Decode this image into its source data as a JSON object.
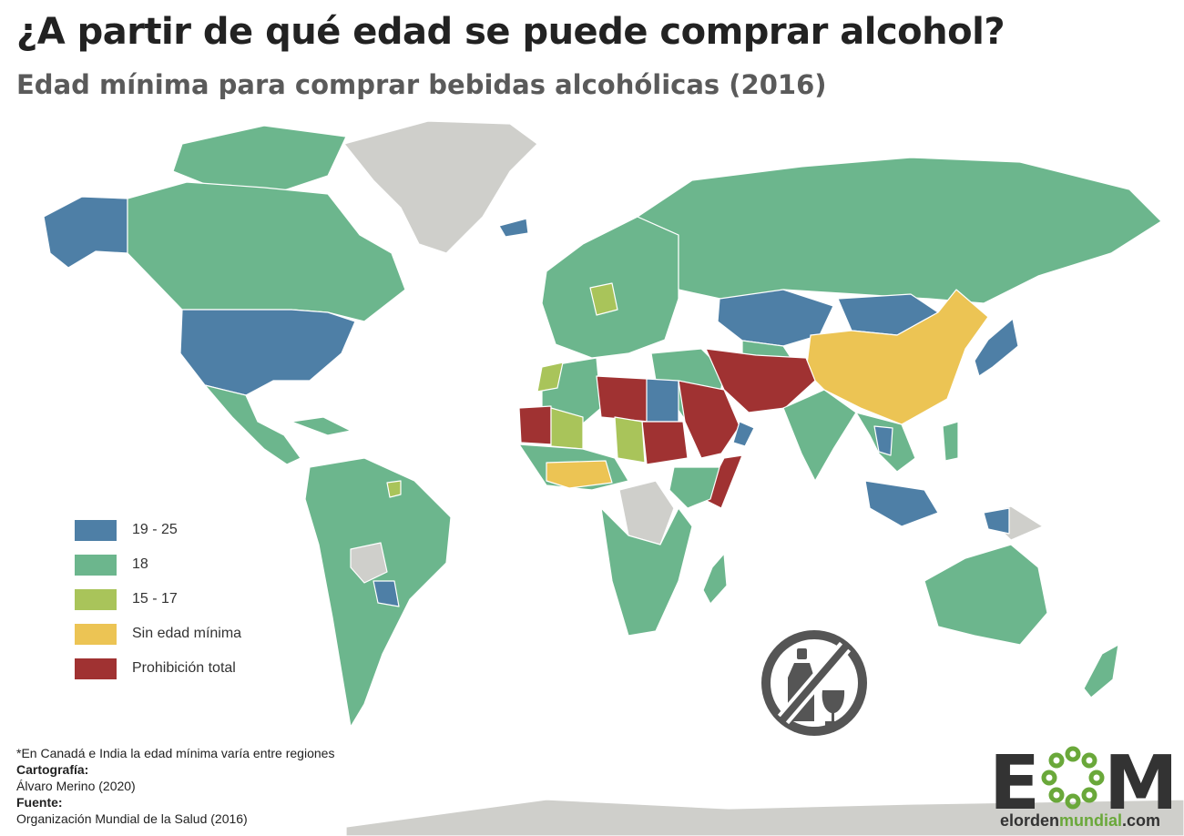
{
  "header": {
    "title": "¿A partir de qué edad se puede comprar alcohol?",
    "subtitle": "Edad mínima para comprar bebidas alcohólicas (2016)"
  },
  "colors": {
    "age_19_25": "#4e7fa6",
    "age_18": "#6cb68d",
    "age_15_17": "#a9c45a",
    "no_minimum": "#ecc454",
    "total_ban": "#a03232",
    "no_data": "#cfcfcb"
  },
  "legend": {
    "items": [
      {
        "label": "19 - 25",
        "color": "#4e7fa6"
      },
      {
        "label": "18",
        "color": "#6cb68d"
      },
      {
        "label": "15 - 17",
        "color": "#a9c45a"
      },
      {
        "label": "Sin edad mínima",
        "color": "#ecc454"
      },
      {
        "label": "Prohibición total",
        "color": "#a03232"
      }
    ]
  },
  "icon": {
    "name": "no-alcohol-icon",
    "color": "#555555"
  },
  "notes": {
    "footnote": "*En Canadá e India la edad mínima varía entre regiones",
    "cartography_label": "Cartografía:",
    "cartography_value": "Álvaro Merino (2020)",
    "source_label": "Fuente:",
    "source_value": "Organización Mundial de la Salud (2016)"
  },
  "logo": {
    "letters": [
      "E",
      "M"
    ],
    "url_parts": [
      "elorden",
      "mundial",
      ".com"
    ],
    "accent": "#6aa83a"
  }
}
